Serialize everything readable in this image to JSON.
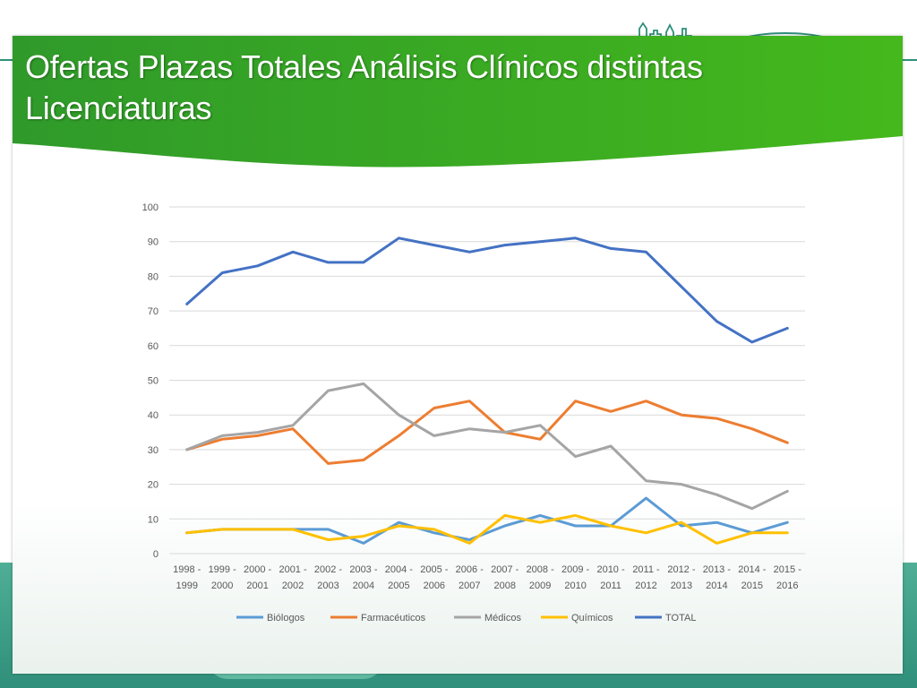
{
  "slide": {
    "title": "Ofertas Plazas Totales Análisis Clínicos distintas Licenciaturas"
  },
  "colors": {
    "banner_green": "#3aaa2a",
    "background_teal": "#2f8f7a",
    "grid": "#d9d9d9"
  },
  "chart_data": {
    "type": "line",
    "categories": [
      [
        "1998 -",
        "1999"
      ],
      [
        "1999 -",
        "2000"
      ],
      [
        "2000 -",
        "2001"
      ],
      [
        "2001 -",
        "2002"
      ],
      [
        "2002 -",
        "2003"
      ],
      [
        "2003 -",
        "2004"
      ],
      [
        "2004 -",
        "2005"
      ],
      [
        "2005 -",
        "2006"
      ],
      [
        "2006 -",
        "2007"
      ],
      [
        "2007 -",
        "2008"
      ],
      [
        "2008 -",
        "2009"
      ],
      [
        "2009 -",
        "2010"
      ],
      [
        "2010 -",
        "2011"
      ],
      [
        "2011 -",
        "2012"
      ],
      [
        "2012 -",
        "2013"
      ],
      [
        "2013 -",
        "2014"
      ],
      [
        "2014 -",
        "2015"
      ],
      [
        "2015 -",
        "2016"
      ]
    ],
    "ylim": [
      0,
      100
    ],
    "yticks": [
      0,
      10,
      20,
      30,
      40,
      50,
      60,
      70,
      80,
      90,
      100
    ],
    "grid": true,
    "legend_position": "bottom",
    "series": [
      {
        "name": "Biólogos",
        "color": "#5b9bd5",
        "values": [
          6,
          7,
          7,
          7,
          7,
          3,
          9,
          6,
          4,
          8,
          11,
          8,
          8,
          16,
          8,
          9,
          6,
          9
        ]
      },
      {
        "name": "Farmacéuticos",
        "color": "#ed7d31",
        "values": [
          30,
          33,
          34,
          36,
          26,
          27,
          34,
          42,
          44,
          35,
          33,
          44,
          41,
          44,
          40,
          39,
          36,
          32
        ]
      },
      {
        "name": "Médicos",
        "color": "#a5a5a5",
        "values": [
          30,
          34,
          35,
          37,
          47,
          49,
          40,
          34,
          36,
          35,
          37,
          28,
          31,
          21,
          20,
          17,
          13,
          18
        ]
      },
      {
        "name": "Químicos",
        "color": "#ffc000",
        "values": [
          6,
          7,
          7,
          7,
          4,
          5,
          8,
          7,
          3,
          11,
          9,
          11,
          8,
          6,
          9,
          3,
          6,
          6
        ]
      },
      {
        "name": "TOTAL",
        "color": "#4472c4",
        "values": [
          72,
          81,
          83,
          87,
          84,
          84,
          91,
          89,
          87,
          89,
          90,
          91,
          88,
          87,
          77,
          67,
          61,
          65
        ]
      }
    ]
  }
}
